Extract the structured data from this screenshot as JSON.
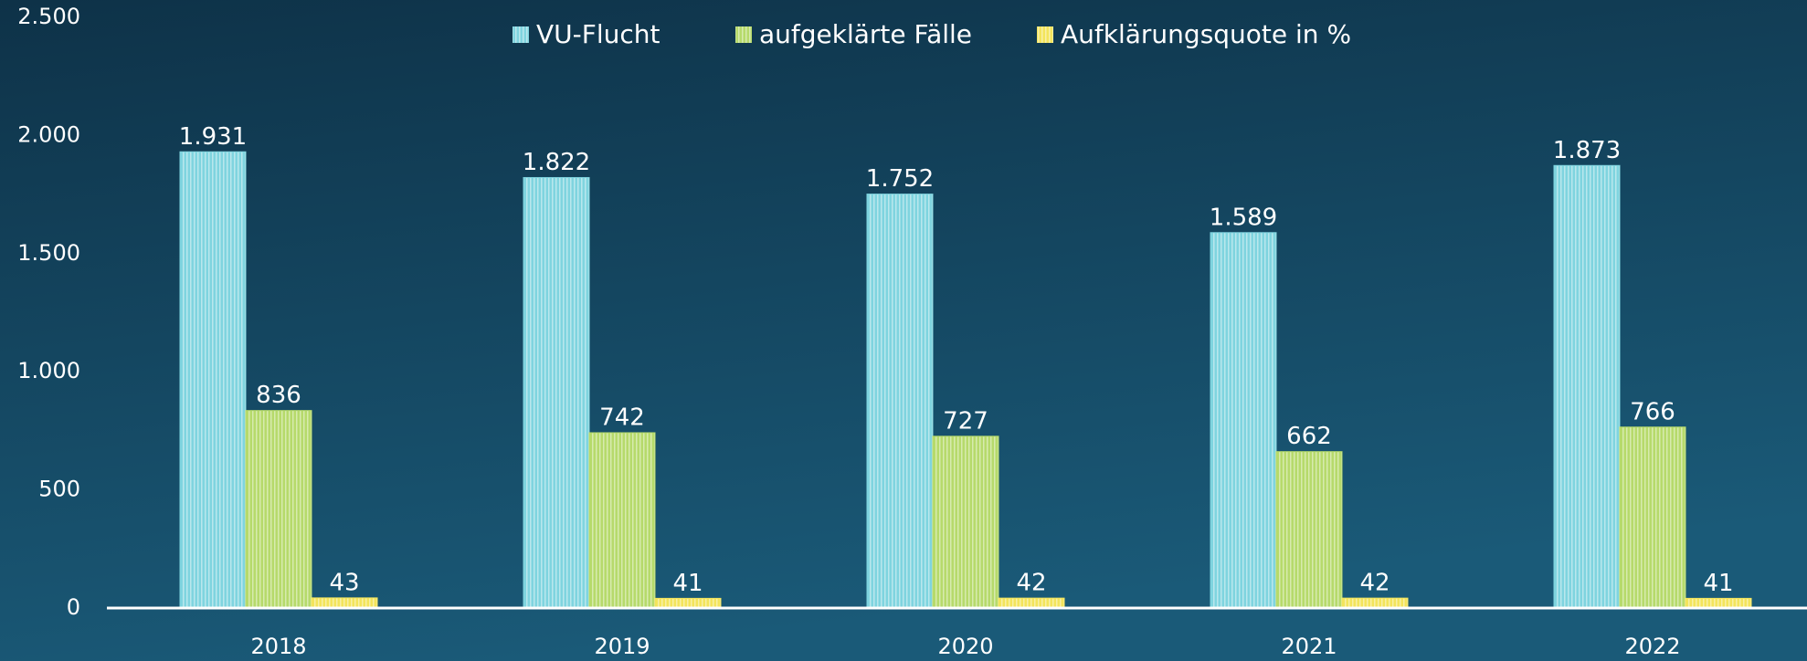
{
  "chart_data": {
    "type": "bar",
    "categories": [
      "2018",
      "2019",
      "2020",
      "2021",
      "2022"
    ],
    "series": [
      {
        "name": "VU-Flucht",
        "color": "#7fd4df",
        "values": [
          1931,
          1822,
          1752,
          1589,
          1873
        ],
        "value_labels": [
          "1.931",
          "1.822",
          "1.752",
          "1.589",
          "1.873"
        ]
      },
      {
        "name": "aufgeklärte Fälle",
        "color": "#b6da6b",
        "values": [
          836,
          742,
          727,
          662,
          766
        ]
      },
      {
        "name": "Aufklärungsquote in %",
        "color": "#f3e45b",
        "values": [
          43,
          41,
          42,
          42,
          41
        ]
      }
    ],
    "ylim": [
      0,
      2500
    ],
    "yticks": [
      0,
      500,
      {
        "value": 1000,
        "label": "1.000"
      },
      {
        "value": 1500,
        "label": "1.500"
      },
      {
        "value": 2000,
        "label": "2.000"
      },
      {
        "value": 2500,
        "label": "2.500"
      }
    ],
    "grid": false,
    "legend": "top"
  }
}
